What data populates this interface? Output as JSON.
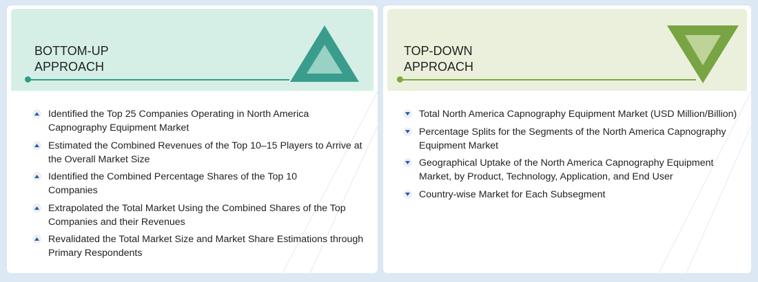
{
  "colors": {
    "teal": "#2f9c87",
    "green": "#7daa3f",
    "bullet": "#1f5ea8"
  },
  "bottom_up": {
    "title_line1": "BOTTOM-UP",
    "title_line2": "APPROACH",
    "icon": "triangle-up-icon",
    "items": [
      "Identified the Top 25 Companies Operating in North America Capnography Equipment Market",
      "Estimated the Combined Revenues of the Top 10–15 Players to Arrive at the Overall Market Size",
      "Identified the Combined Percentage Shares of the Top 10 Companies",
      "Extrapolated the Total Market Using the Combined Shares of the Top Companies and their Revenues",
      "Revalidated the Total Market Size and Market Share Estimations through Primary Respondents"
    ]
  },
  "top_down": {
    "title_line1": "TOP-DOWN",
    "title_line2": "APPROACH",
    "icon": "triangle-down-icon",
    "items": [
      "Total North America Capnography Equipment Market (USD Million/Billion)",
      "Percentage Splits for the Segments of the North America Capnography Equipment Market",
      "Geographical Uptake of the North America Capnography Equipment Market, by Product, Technology, Application, and End User",
      "Country-wise Market for Each Subsegment"
    ]
  }
}
